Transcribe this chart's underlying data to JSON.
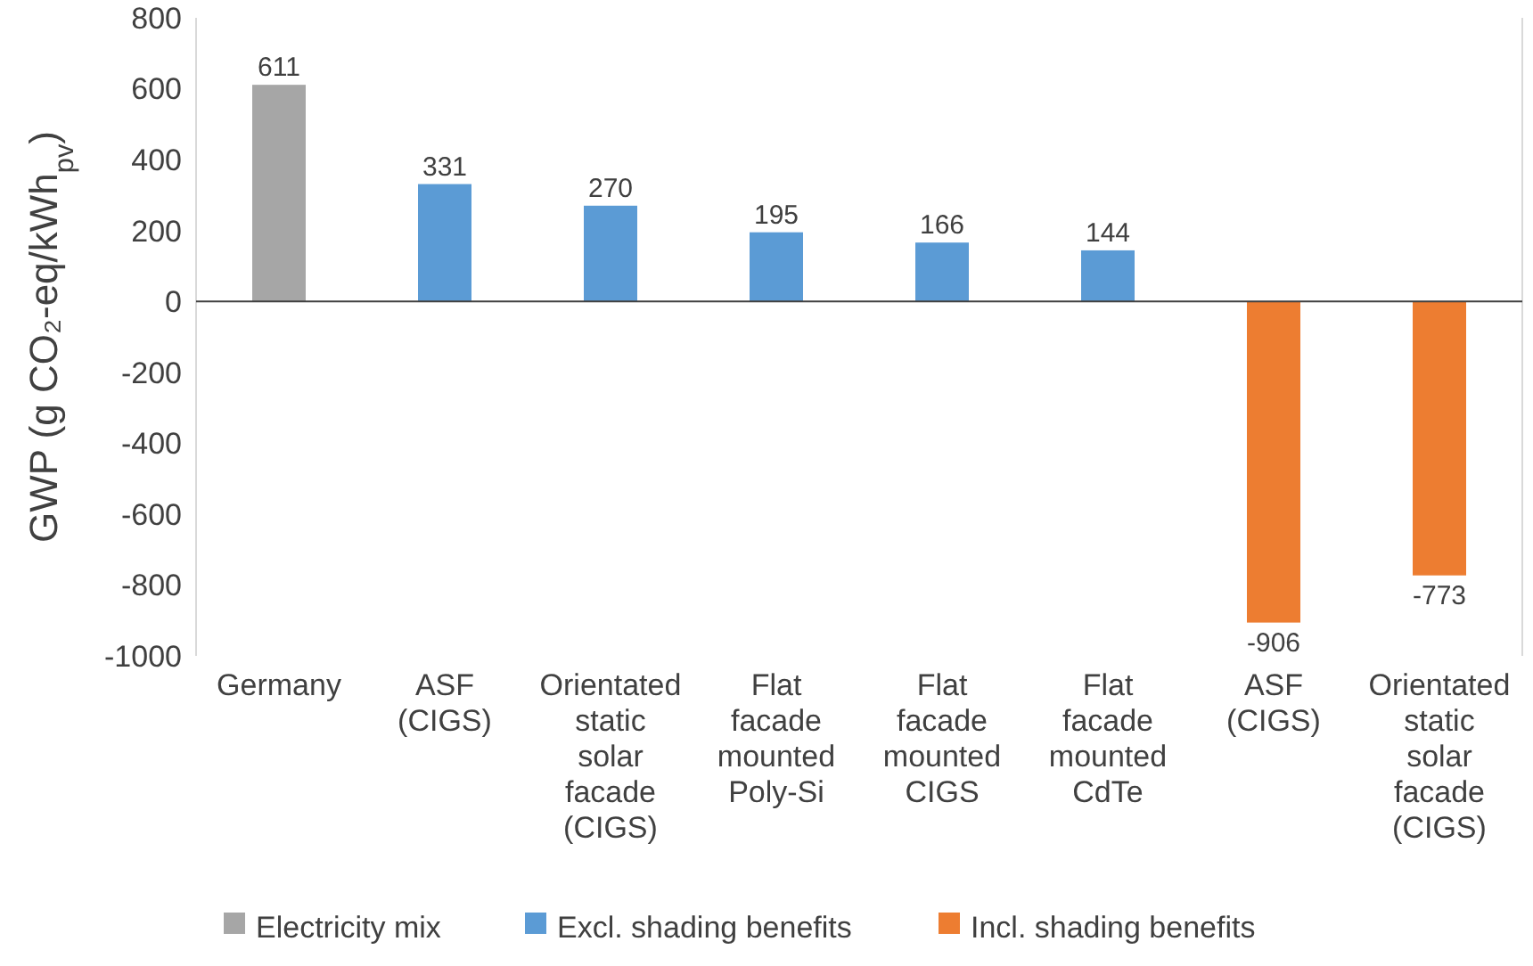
{
  "chart_data": {
    "type": "bar",
    "ylabel": "GWP (g CO₂-eq/kWh$_{pv}$)",
    "categories": [
      "Germany",
      "ASF (CIGS)",
      "Orientated static solar facade (CIGS)",
      "Flat facade mounted Poly-Si",
      "Flat facade mounted CIGS",
      "Flat facade mounted CdTe",
      "ASF (CIGS)",
      "Orientated static solar facade (CIGS)"
    ],
    "series": [
      {
        "name": "Electricity mix",
        "color": "#a6a6a6",
        "values": [
          611,
          null,
          null,
          null,
          null,
          null,
          null,
          null
        ]
      },
      {
        "name": "Excl. shading benefits",
        "color": "#5b9bd5",
        "values": [
          null,
          331,
          270,
          195,
          166,
          144,
          null,
          null
        ]
      },
      {
        "name": "Incl. shading benefits",
        "color": "#ed7d31",
        "values": [
          null,
          null,
          null,
          null,
          null,
          null,
          -906,
          -773
        ]
      }
    ],
    "ylim": [
      -1000,
      800
    ],
    "yticks": [
      -1000,
      -800,
      -600,
      -400,
      -200,
      0,
      200,
      400,
      600,
      800
    ],
    "data_labels": true,
    "legend": "bottom"
  }
}
